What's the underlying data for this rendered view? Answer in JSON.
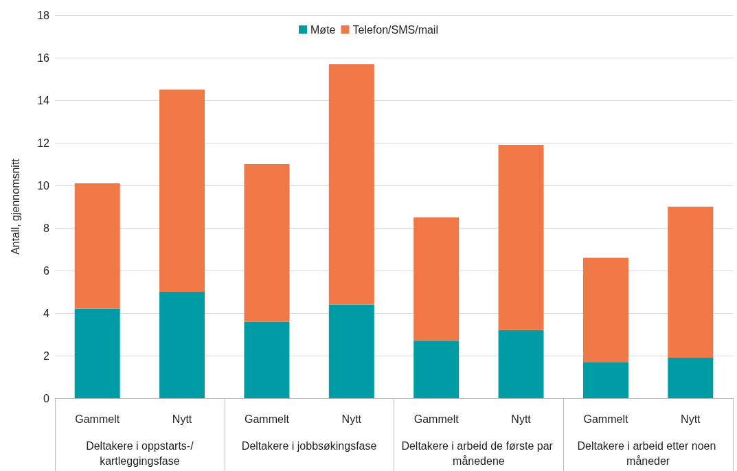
{
  "chart_data": {
    "type": "bar",
    "stacked": true,
    "ylabel": "Antall, gjennomsnitt",
    "categories": [
      "Gammelt",
      "Nytt",
      "Gammelt",
      "Nytt",
      "Gammelt",
      "Nytt",
      "Gammelt",
      "Nytt"
    ],
    "annotations": [
      "Deltakere i oppstarts-/kartleggingsfase",
      "Deltakere i jobbsøkingsfase",
      "Deltakere i arbeid de første par månedene",
      "Deltakere i arbeid etter noen måneder"
    ],
    "series": [
      {
        "name": "Møte",
        "color": "#009ca6",
        "values": [
          4.2,
          5.0,
          3.6,
          4.4,
          2.7,
          3.2,
          1.7,
          1.9
        ]
      },
      {
        "name": "Telefon/SMS/mail",
        "color": "#f07846",
        "values": [
          5.9,
          9.5,
          7.4,
          11.3,
          5.8,
          8.7,
          4.9,
          7.1
        ]
      }
    ],
    "ylim": [
      0,
      18
    ],
    "yticks": [
      0,
      2,
      4,
      6,
      8,
      10,
      12,
      14,
      16,
      18
    ],
    "grid": "y",
    "legend": "top"
  }
}
